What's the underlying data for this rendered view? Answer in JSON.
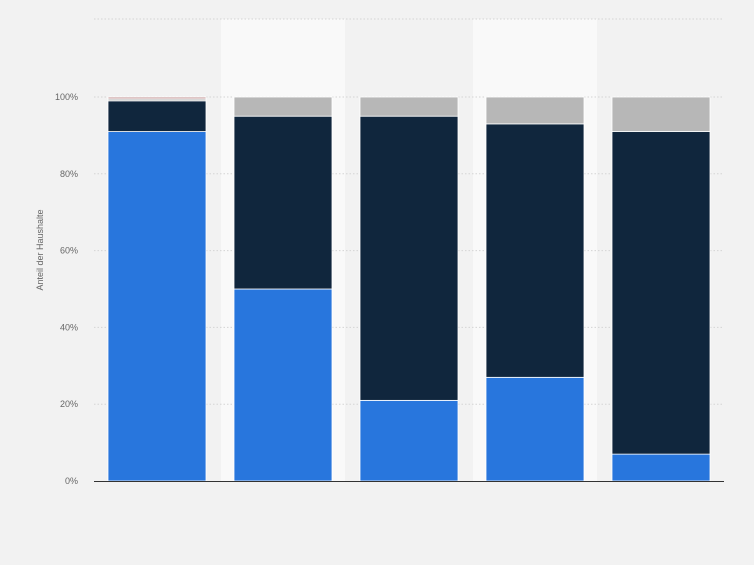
{
  "chart_data": {
    "type": "bar",
    "stacked": true,
    "ylabel": "Anteil der Haushalte",
    "ylim": [
      0,
      100
    ],
    "y_ticks": [
      "0%",
      "20%",
      "40%",
      "60%",
      "80%",
      "100%"
    ],
    "categories": [
      "",
      "",
      "",
      "",
      ""
    ],
    "grid": true,
    "legend": "none",
    "series": [
      {
        "color": "#2876dd",
        "values": [
          91,
          50,
          21,
          27,
          7
        ]
      },
      {
        "color": "#10263d",
        "values": [
          8,
          45,
          74,
          66,
          84
        ]
      },
      {
        "color": "#b7b7b7",
        "values": [
          0.5,
          5,
          5,
          7,
          9
        ]
      },
      {
        "color": "#c9a0a0",
        "values": [
          0.5,
          0,
          0,
          0,
          0
        ]
      }
    ],
    "colors": {
      "background": "#f2f2f2",
      "alt_band": "#f9f9f9",
      "grid": "#d4d4d4",
      "axis": "#333333",
      "tick_text": "#666666"
    }
  }
}
